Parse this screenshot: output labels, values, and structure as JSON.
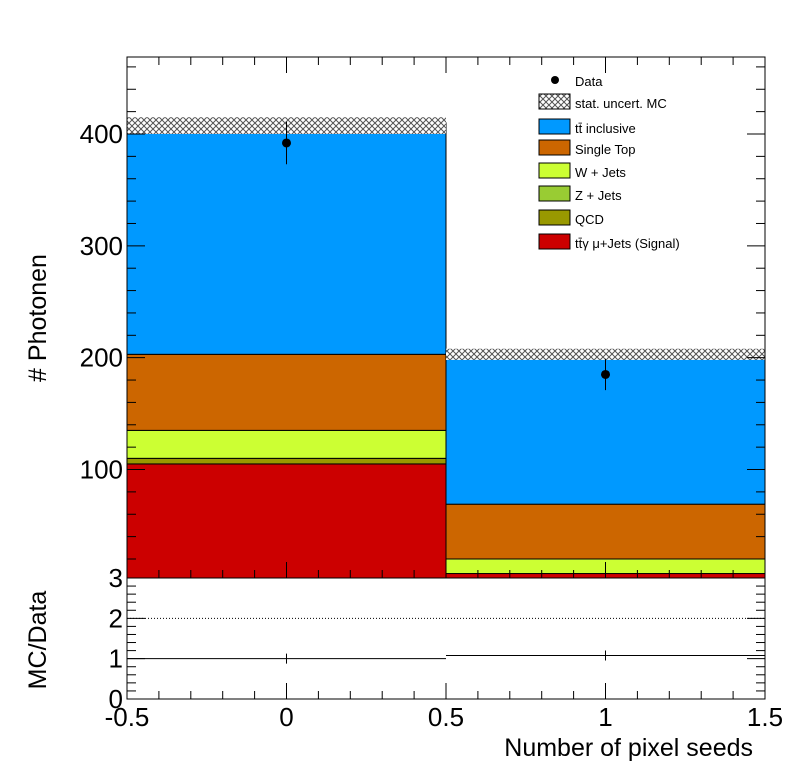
{
  "chart_data": [
    {
      "type": "bar",
      "stacked": true,
      "bins": [
        [
          -0.5,
          0.5
        ],
        [
          0.5,
          1.5
        ]
      ],
      "xlim": [
        -0.5,
        1.5
      ],
      "ylim": [
        3,
        470
      ],
      "ylabel": "# Photonen",
      "y_ticks": [
        400,
        300,
        200,
        100,
        3
      ],
      "series": [
        {
          "name": "tt̄γ μ+Jets (Signal)",
          "color": "#cc0000",
          "values": [
            102,
            4
          ]
        },
        {
          "name": "QCD",
          "color": "#999900",
          "values": [
            5,
            0
          ]
        },
        {
          "name": "Z + Jets",
          "color": "#99cc33",
          "values": [
            0,
            0
          ]
        },
        {
          "name": "W + Jets",
          "color": "#ccff33",
          "values": [
            25,
            13
          ]
        },
        {
          "name": "Single Top",
          "color": "#cc6600",
          "values": [
            68,
            49
          ]
        },
        {
          "name": "tt̄ inclusive",
          "color": "#0099ff",
          "values": [
            207,
            133
          ]
        }
      ],
      "mc_uncertainty": {
        "label": "stat. uncert. MC",
        "band": [
          [
            400,
            415
          ],
          [
            198,
            208
          ]
        ]
      },
      "data": {
        "label": "Data",
        "x": [
          0,
          1
        ],
        "y": [
          392,
          185
        ],
        "err": [
          19,
          14
        ]
      },
      "legend_placement": "top-right"
    },
    {
      "type": "line",
      "ylabel": "MC/Data",
      "xlabel": "Number of pixel seeds",
      "xlim": [
        -0.5,
        1.5
      ],
      "ylim": [
        0,
        3
      ],
      "y_ticks": [
        0,
        1,
        2
      ],
      "x_ticks": [
        "-0.5",
        "0",
        "0.5",
        "1",
        "1.5"
      ],
      "reference_line": 2,
      "ratio": {
        "x": [
          0,
          1
        ],
        "y": [
          1.0,
          1.08
        ]
      }
    }
  ]
}
